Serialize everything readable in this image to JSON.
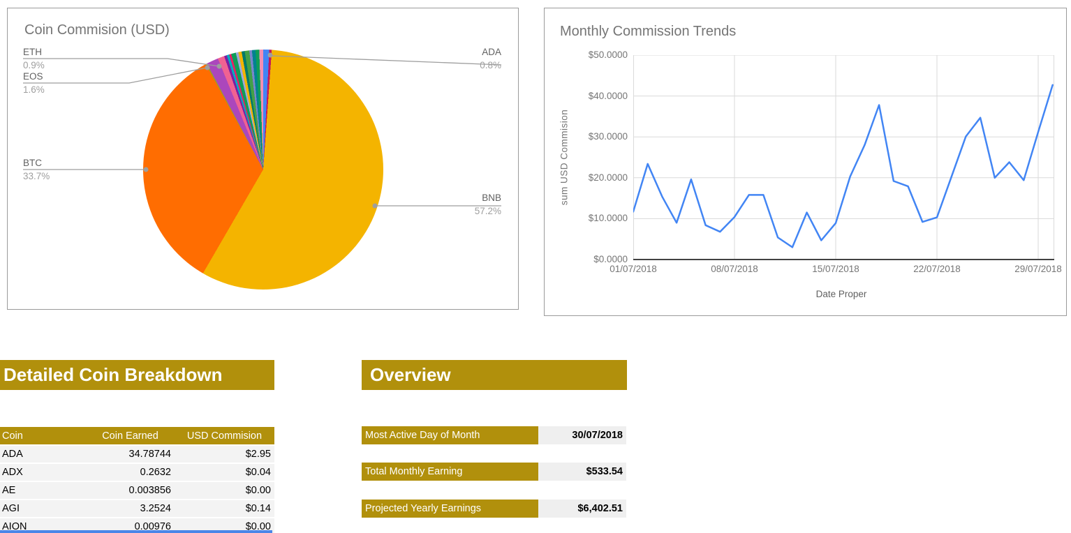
{
  "colors": {
    "accent_gold": "#B1900C",
    "table_row_bg": "#F3F3F3",
    "value_cell_bg": "#EFEFEF",
    "line_blue": "#4285F4",
    "bottom_strip_blue": "#4A86E8",
    "bnb_yellow": "#F4B400",
    "btc_orange": "#FF6D01",
    "ada_blue": "#4285F4"
  },
  "pie_card": {
    "title": "Coin Commision (USD)",
    "labels": {
      "eth": {
        "name": "ETH",
        "pct": "0.9%"
      },
      "eos": {
        "name": "EOS",
        "pct": "1.6%"
      },
      "btc": {
        "name": "BTC",
        "pct": "33.7%"
      },
      "ada": {
        "name": "ADA",
        "pct": "0.8%"
      },
      "bnb": {
        "name": "BNB",
        "pct": "57.2%"
      }
    }
  },
  "line_card": {
    "title": "Monthly Commission Trends"
  },
  "chart_data": [
    {
      "type": "pie",
      "title": "Coin Commision (USD)",
      "slices": [
        {
          "label": "BNB",
          "pct": 57.2,
          "color": "#F4B400"
        },
        {
          "label": "BTC",
          "pct": 33.7,
          "color": "#FF6D01"
        },
        {
          "label": "EOS",
          "pct": 1.6,
          "color": "#AB47BC"
        },
        {
          "label": "ETH",
          "pct": 0.9,
          "color": "#F06292"
        },
        {
          "label": "ADA",
          "pct": 0.8,
          "color": "#4285F4"
        },
        {
          "label": "other small coins",
          "pct": 5.8,
          "color": "assorted"
        }
      ],
      "segments": [
        [
          0,
          2.9,
          "#4285F4"
        ],
        [
          2.9,
          4.1,
          "#C2185B"
        ],
        [
          4.1,
          210.1,
          "#F4B400"
        ],
        [
          210.1,
          331.4,
          "#FF6D01"
        ],
        [
          331.4,
          332.0,
          "#9E9D24"
        ],
        [
          332.0,
          337.8,
          "#AB47BC"
        ],
        [
          337.8,
          341.0,
          "#F06292"
        ],
        [
          341.0,
          342.3,
          "#7B1FA2"
        ],
        [
          342.3,
          343.5,
          "#00ACC1"
        ],
        [
          343.5,
          344.5,
          "#E91E63"
        ],
        [
          344.5,
          346.8,
          "#0F9D58"
        ],
        [
          346.8,
          348.0,
          "#9FA8DA"
        ],
        [
          348.0,
          349.6,
          "#F4B400"
        ],
        [
          349.6,
          351.1,
          "#00796B"
        ],
        [
          351.1,
          353.3,
          "#43A047"
        ],
        [
          353.3,
          354.6,
          "#7986CB"
        ],
        [
          354.6,
          356.3,
          "#00838F"
        ],
        [
          356.3,
          358.1,
          "#0F9D58"
        ],
        [
          358.1,
          360,
          "#F48FB1"
        ]
      ]
    },
    {
      "type": "line",
      "title": "Monthly Commission Trends",
      "xlabel": "Date Proper",
      "ylabel": "sum USD Commision",
      "ylim": [
        0,
        50
      ],
      "grid": true,
      "line_color": "#4285F4",
      "y_ticks": [
        "$0.0000",
        "$10.0000",
        "$20.0000",
        "$30.0000",
        "$40.0000",
        "$50.0000"
      ],
      "x_ticks": [
        "01/07/2018",
        "08/07/2018",
        "15/07/2018",
        "22/07/2018",
        "29/07/2018"
      ],
      "x": [
        "01/07/2018",
        "02/07/2018",
        "03/07/2018",
        "04/07/2018",
        "05/07/2018",
        "06/07/2018",
        "07/07/2018",
        "08/07/2018",
        "09/07/2018",
        "10/07/2018",
        "11/07/2018",
        "12/07/2018",
        "13/07/2018",
        "14/07/2018",
        "15/07/2018",
        "16/07/2018",
        "17/07/2018",
        "18/07/2018",
        "19/07/2018",
        "20/07/2018",
        "21/07/2018",
        "22/07/2018",
        "23/07/2018",
        "24/07/2018",
        "25/07/2018",
        "26/07/2018",
        "27/07/2018",
        "28/07/2018",
        "29/07/2018",
        "30/07/2018"
      ],
      "values": [
        11.7,
        23.4,
        15.4,
        9.0,
        19.6,
        8.4,
        6.8,
        10.4,
        15.8,
        15.8,
        5.4,
        3.0,
        11.5,
        4.7,
        8.9,
        20.3,
        28.0,
        37.8,
        19.2,
        17.9,
        9.2,
        10.3,
        20.2,
        30.1,
        34.7,
        20.0,
        23.8,
        19.4,
        31.2,
        42.7
      ]
    }
  ],
  "breakdown": {
    "title": "Detailed Coin Breakdown",
    "columns": [
      "Coin",
      "Coin Earned",
      "USD Commision"
    ],
    "rows": [
      [
        "ADA",
        "34.78744",
        "$2.95"
      ],
      [
        "ADX",
        "0.2632",
        "$0.04"
      ],
      [
        "AE",
        "0.003856",
        "$0.00"
      ],
      [
        "AGI",
        "3.2524",
        "$0.14"
      ],
      [
        "AION",
        "0.00976",
        "$0.00"
      ]
    ]
  },
  "overview": {
    "title": "Overview",
    "rows": [
      {
        "label": "Most Active Day of Month",
        "value": "30/07/2018"
      },
      {
        "label": "Total Monthly Earning",
        "value": "$533.54"
      },
      {
        "label": "Projected Yearly Earnings",
        "value": "$6,402.51"
      }
    ]
  }
}
